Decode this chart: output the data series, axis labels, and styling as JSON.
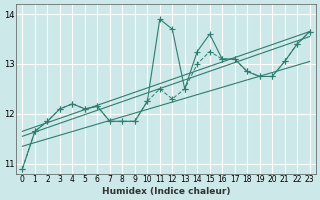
{
  "title": "",
  "xlabel": "Humidex (Indice chaleur)",
  "ylabel": "",
  "bg_color": "#cce8e8",
  "grid_color": "#ffffff",
  "line_color": "#2e7d6e",
  "xlim": [
    -0.5,
    23.5
  ],
  "ylim": [
    10.8,
    14.2
  ],
  "yticks": [
    11,
    12,
    13,
    14
  ],
  "xtick_labels": [
    "0",
    "1",
    "2",
    "3",
    "4",
    "5",
    "6",
    "7",
    "8",
    "9",
    "10",
    "11",
    "12",
    "13",
    "14",
    "15",
    "16",
    "17",
    "18",
    "19",
    "20",
    "21",
    "22",
    "23"
  ],
  "series": [
    [
      10.9,
      11.65,
      11.85,
      12.1,
      12.2,
      12.1,
      12.15,
      11.85,
      11.85,
      11.85,
      12.25,
      13.9,
      13.7,
      12.5,
      13.25,
      13.6,
      13.1,
      13.1,
      12.85,
      12.75,
      12.75,
      13.05,
      13.4,
      13.65
    ],
    [
      10.9,
      11.65,
      11.85,
      12.1,
      12.2,
      12.1,
      12.15,
      11.85,
      11.85,
      11.85,
      12.25,
      12.5,
      12.3,
      12.5,
      13.0,
      13.25,
      13.1,
      13.1,
      12.85,
      12.75,
      12.75,
      13.05,
      13.4,
      13.65
    ],
    null,
    null
  ],
  "regression_lines": [
    {
      "x": [
        0,
        23
      ],
      "y": [
        11.35,
        13.05
      ]
    },
    {
      "x": [
        0,
        23
      ],
      "y": [
        11.55,
        13.55
      ]
    },
    {
      "x": [
        0,
        23
      ],
      "y": [
        11.65,
        13.65
      ]
    }
  ]
}
